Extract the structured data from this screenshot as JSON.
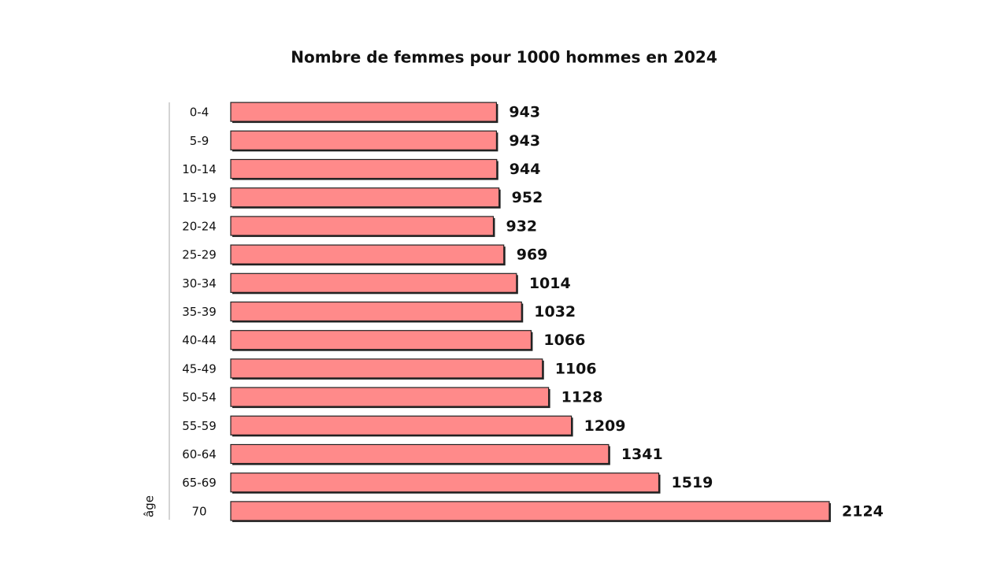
{
  "chart_data": {
    "type": "barh",
    "title": "Nombre de femmes pour 1000 hommes en 2024",
    "y_label": "âge",
    "categories": [
      "0-4",
      "5-9",
      "10-14",
      "15-19",
      "20-24",
      "25-29",
      "30-34",
      "35-39",
      "40-44",
      "45-49",
      "50-54",
      "55-59",
      "60-64",
      "65-69",
      "70"
    ],
    "values": [
      943,
      943,
      944,
      952,
      932,
      969,
      1014,
      1032,
      1066,
      1106,
      1128,
      1209,
      1341,
      1519,
      2124
    ],
    "color": "#ff8a8a"
  }
}
